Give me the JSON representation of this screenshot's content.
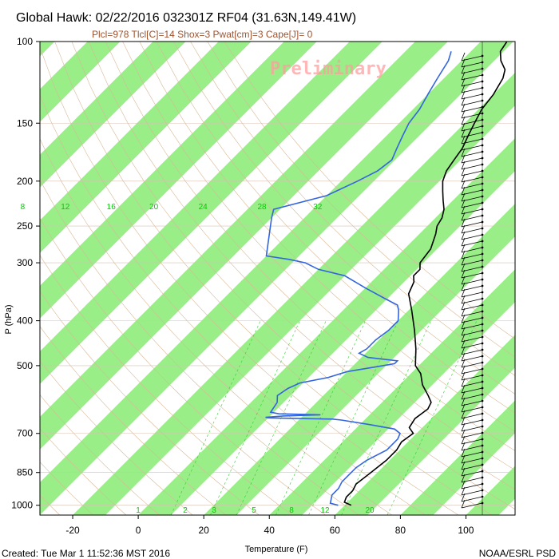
{
  "chart_data": {
    "type": "line",
    "title": "Global Hawk: 02/22/2016 032301Z RF04 (31.63N,149.41W)",
    "subtitle": "Plcl=978 Tlcl[C]=14 Shox=3 Pwat[cm]=3 Cape[J]= 0",
    "watermark": "Preliminary",
    "xlabel": "Temperature (F)",
    "ylabel": "P (hPa)",
    "xlim": [
      -30,
      115
    ],
    "ylim_pressure": [
      1050,
      100
    ],
    "y_log_scale": true,
    "x_ticks": [
      -20,
      0,
      20,
      40,
      60,
      80,
      100
    ],
    "y_ticks": [
      100,
      150,
      200,
      250,
      300,
      400,
      500,
      700,
      850,
      1000
    ],
    "mixing_ratio_labels": [
      "8",
      "12",
      "16",
      "20",
      "24",
      "28",
      "32"
    ],
    "mixing_ratio_bottom_labels": [
      "1",
      "2",
      "3",
      "5",
      "8",
      "12",
      "20"
    ],
    "series": [
      {
        "name": "",
        "color": "#000000",
        "points": [
          [
            1000,
            62
          ],
          [
            985,
            59
          ],
          [
            960,
            58
          ],
          [
            930,
            58
          ],
          [
            900,
            57
          ],
          [
            850,
            58
          ],
          [
            800,
            59
          ],
          [
            760,
            59
          ],
          [
            730,
            58
          ],
          [
            700,
            59
          ],
          [
            680,
            56
          ],
          [
            650,
            55
          ],
          [
            620,
            56
          ],
          [
            600,
            55
          ],
          [
            580,
            52
          ],
          [
            550,
            47
          ],
          [
            520,
            43
          ],
          [
            500,
            39
          ],
          [
            460,
            34
          ],
          [
            420,
            28
          ],
          [
            380,
            21
          ],
          [
            350,
            15
          ],
          [
            330,
            13
          ],
          [
            320,
            11
          ],
          [
            310,
            11
          ],
          [
            300,
            9
          ],
          [
            280,
            8
          ],
          [
            260,
            5
          ],
          [
            250,
            3
          ],
          [
            240,
            2
          ],
          [
            230,
            0
          ],
          [
            220,
            -3
          ],
          [
            210,
            -6
          ],
          [
            200,
            -9
          ],
          [
            190,
            -11
          ],
          [
            180,
            -12
          ],
          [
            170,
            -13
          ],
          [
            160,
            -15
          ],
          [
            150,
            -17
          ],
          [
            140,
            -19
          ],
          [
            130,
            -20
          ],
          [
            125,
            -21
          ],
          [
            120,
            -22
          ],
          [
            115,
            -24
          ],
          [
            110,
            -28
          ],
          [
            105,
            -31
          ],
          [
            100,
            -32
          ]
        ]
      },
      {
        "name": "",
        "color": "#3366dd",
        "points": [
          [
            1000,
            58
          ],
          [
            990,
            55
          ],
          [
            970,
            54
          ],
          [
            950,
            53
          ],
          [
            920,
            53
          ],
          [
            890,
            52
          ],
          [
            860,
            52
          ],
          [
            830,
            52
          ],
          [
            800,
            53
          ],
          [
            760,
            56
          ],
          [
            720,
            56
          ],
          [
            700,
            55
          ],
          [
            685,
            52
          ],
          [
            670,
            43
          ],
          [
            655,
            33
          ],
          [
            652,
            30
          ],
          [
            650,
            20
          ],
          [
            648,
            10
          ],
          [
            646,
            9
          ],
          [
            642,
            14
          ],
          [
            638,
            25
          ],
          [
            635,
            12
          ],
          [
            630,
            9
          ],
          [
            600,
            8
          ],
          [
            580,
            6
          ],
          [
            560,
            7
          ],
          [
            545,
            9
          ],
          [
            530,
            16
          ],
          [
            515,
            20
          ],
          [
            505,
            26
          ],
          [
            495,
            32
          ],
          [
            488,
            32
          ],
          [
            480,
            22
          ],
          [
            470,
            18
          ],
          [
            460,
            19
          ],
          [
            440,
            19
          ],
          [
            420,
            20
          ],
          [
            400,
            20
          ],
          [
            380,
            17
          ],
          [
            370,
            15
          ],
          [
            360,
            10
          ],
          [
            340,
            0
          ],
          [
            320,
            -10
          ],
          [
            310,
            -20
          ],
          [
            300,
            -26
          ],
          [
            295,
            -32
          ],
          [
            290,
            -40
          ],
          [
            240,
            -50
          ],
          [
            230,
            -52
          ],
          [
            215,
            -40
          ],
          [
            200,
            -35
          ],
          [
            190,
            -32
          ],
          [
            180,
            -31
          ],
          [
            170,
            -33
          ],
          [
            160,
            -35
          ],
          [
            150,
            -37
          ],
          [
            140,
            -38
          ],
          [
            130,
            -40
          ],
          [
            120,
            -42
          ],
          [
            110,
            -44
          ],
          [
            105,
            -46
          ]
        ]
      }
    ],
    "grid": true,
    "wind_barbs_column": true
  },
  "footer": {
    "left": "Created: Tue Mar  1 11:52:36 MST 2016",
    "right": "NOAA/ESRL PSD"
  },
  "colors": {
    "band": "#99ee88",
    "temperature": "#000000",
    "dewpoint": "#3366dd",
    "adiabat": "#d9b896",
    "mixing_ratio": "#33cc33"
  }
}
